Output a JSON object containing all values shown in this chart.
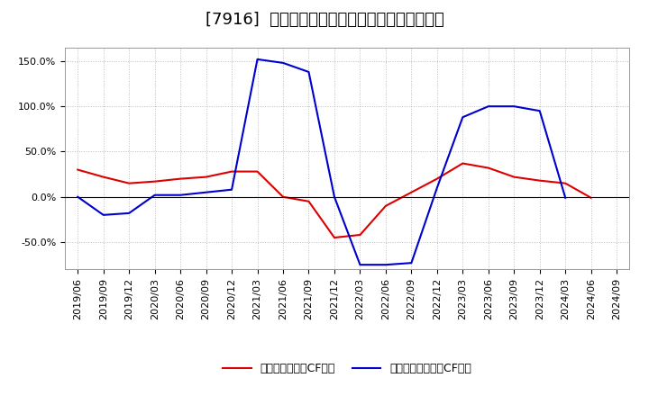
{
  "title": "[7916]  有利子負債キャッシュフロー比率の推移",
  "x_labels": [
    "2019/06",
    "2019/09",
    "2019/12",
    "2020/03",
    "2020/06",
    "2020/09",
    "2020/12",
    "2021/03",
    "2021/06",
    "2021/09",
    "2021/12",
    "2022/03",
    "2022/06",
    "2022/09",
    "2022/12",
    "2023/03",
    "2023/06",
    "2023/09",
    "2023/12",
    "2024/03",
    "2024/06",
    "2024/09"
  ],
  "red_series": [
    30,
    22,
    15,
    17,
    20,
    22,
    28,
    28,
    0,
    -5,
    -45,
    -42,
    -10,
    5,
    20,
    37,
    32,
    22,
    18,
    15,
    -1,
    null
  ],
  "blue_series": [
    0,
    -20,
    -18,
    2,
    2,
    5,
    8,
    152,
    148,
    138,
    0,
    -75,
    -75,
    -73,
    10,
    88,
    100,
    100,
    95,
    -1,
    null,
    null
  ],
  "ylim": [
    -80,
    165
  ],
  "yticks": [
    -50,
    0,
    50,
    100,
    150
  ],
  "legend_red": "有利子負債営業CF比率",
  "legend_blue": "有利子負債フリーCF比率",
  "bg_color": "#ffffff",
  "plot_bg_color": "#ffffff",
  "grid_color": "#bbbbbb",
  "red_color": "#dd0000",
  "blue_color": "#0000cc",
  "title_fontsize": 13,
  "tick_fontsize": 8,
  "legend_fontsize": 9
}
